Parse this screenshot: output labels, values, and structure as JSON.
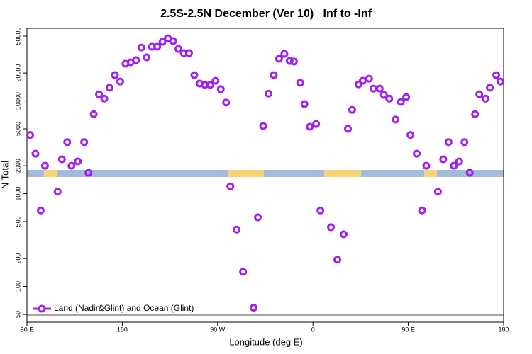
{
  "chart_data": {
    "type": "scatter",
    "title": "2.5S-2.5N December (Ver 10)   Inf to -Inf",
    "x_label": "Longitude (deg E)",
    "y_label": "N Total",
    "log_y": true,
    "legend": "bottom-left",
    "xlim": [
      90,
      540
    ],
    "xticks": [
      {
        "value": 90,
        "label": "90 E"
      },
      180,
      {
        "value": 270,
        "label": "90 W"
      },
      {
        "value": 360,
        "label": "0"
      },
      {
        "value": 450,
        "label": "90 E"
      },
      {
        "value": 540,
        "label": "180"
      }
    ],
    "ylim": [
      41.2,
      60700
    ],
    "yticks": [
      50,
      100,
      200,
      500,
      1000,
      2000,
      5000,
      10000,
      20000,
      50000
    ],
    "series": [
      {
        "name": "Land (Nadir&Glint) and Ocean (Glint)",
        "color": "#a020f0",
        "x": [
          93,
          98,
          103,
          107,
          119,
          123,
          128,
          132,
          138,
          144,
          148,
          153,
          158,
          163,
          168,
          173,
          178,
          183,
          188,
          193,
          198,
          203,
          208,
          213,
          218,
          223,
          228,
          233,
          238,
          243,
          248,
          253,
          258,
          263,
          268,
          273,
          278,
          282,
          288,
          294,
          304,
          308,
          313,
          318,
          323,
          328,
          333,
          338,
          342,
          348,
          352,
          357,
          363,
          367,
          377,
          383,
          389,
          393,
          397,
          403,
          407,
          413,
          417,
          423,
          427,
          432,
          438,
          443,
          448,
          452,
          458,
          463,
          467,
          478,
          483,
          488,
          493,
          498,
          503,
          508,
          513,
          517,
          523,
          527,
          533,
          537
        ],
        "values": [
          4300,
          2700,
          660,
          2000,
          1050,
          2350,
          3600,
          2000,
          2230,
          3600,
          1680,
          7200,
          11800,
          10600,
          13900,
          19000,
          16200,
          25200,
          26100,
          27500,
          37700,
          29500,
          38400,
          38400,
          43400,
          47400,
          44200,
          36400,
          32800,
          32800,
          19000,
          15400,
          14900,
          14900,
          16500,
          13400,
          9600,
          1200,
          410,
          144,
          59,
          556,
          5370,
          12000,
          19000,
          28500,
          32200,
          27000,
          26600,
          15700,
          9250,
          5270,
          5650,
          660,
          435,
          194,
          365,
          5000,
          8000,
          15100,
          16500,
          17400,
          13600,
          13600,
          11600,
          10600,
          6300,
          9750,
          11000,
          4300,
          2700,
          660,
          2000,
          1050,
          2350,
          3600,
          2000,
          2230,
          3600,
          1680,
          7200,
          11800,
          10600,
          13900,
          19000,
          16200
        ]
      }
    ]
  }
}
